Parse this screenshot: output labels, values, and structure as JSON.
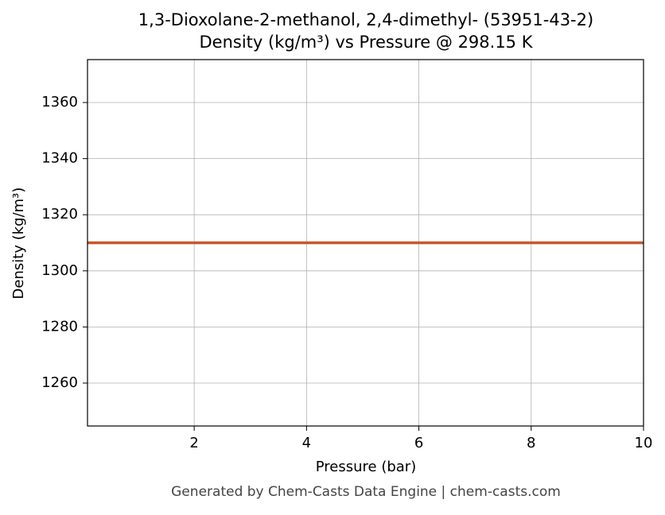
{
  "chart_data": {
    "type": "line",
    "title": "1,3-Dioxolane-2-methanol, 2,4-dimethyl- (53951-43-2)",
    "subtitle": "Density (kg/m³) vs Pressure @ 298.15 K",
    "x_label": "Pressure (bar)",
    "y_label": "Density (kg/m³)",
    "x": [
      0.1,
      10
    ],
    "series": [
      {
        "name": "Density",
        "color": "#c8552b",
        "values": [
          1310,
          1310
        ]
      }
    ],
    "xlim": [
      0.1,
      10
    ],
    "xticks": [
      2,
      4,
      6,
      8,
      10
    ],
    "ylim": [
      1244.7,
      1375.3
    ],
    "yticks": [
      1260,
      1280,
      1300,
      1320,
      1340,
      1360
    ],
    "grid": true
  },
  "footer": "Generated by Chem-Casts Data Engine | chem-casts.com"
}
